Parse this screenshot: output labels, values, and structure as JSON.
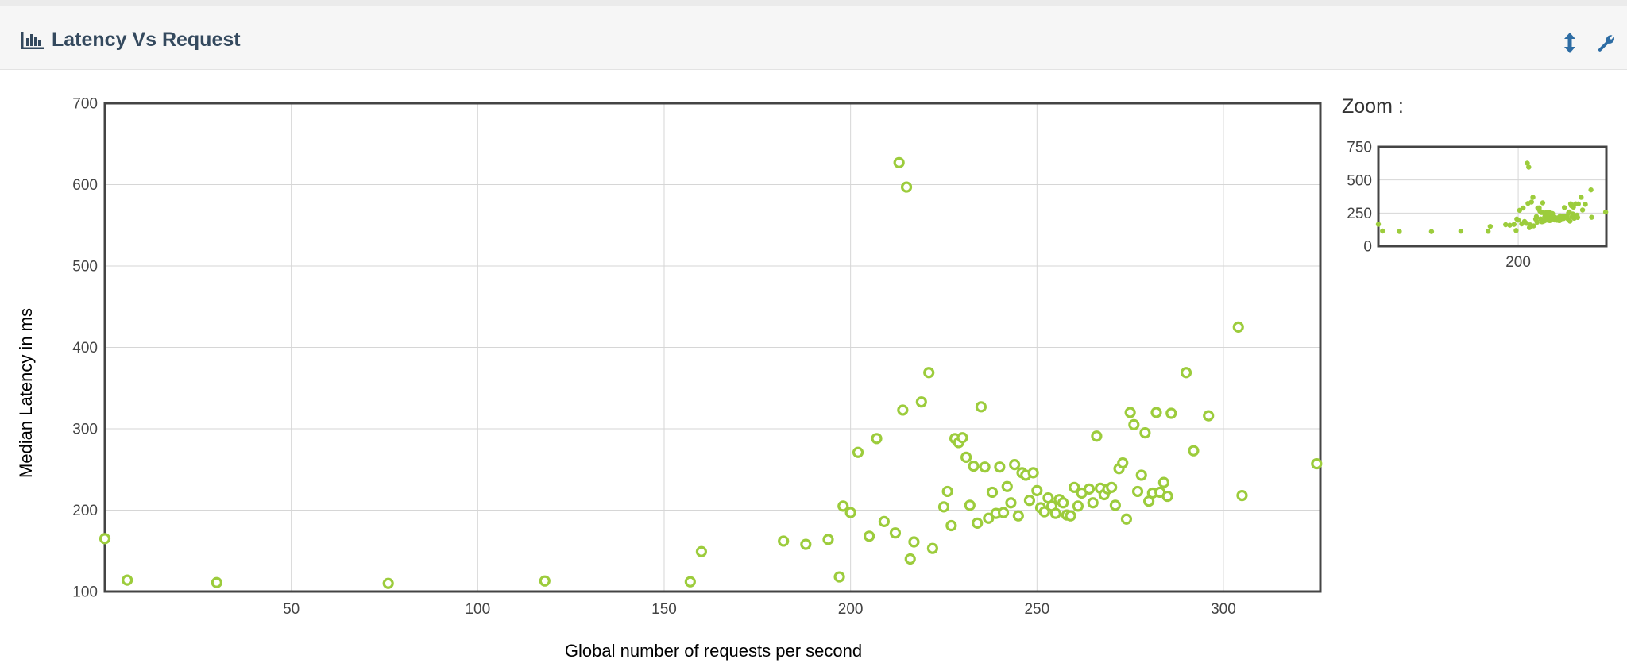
{
  "panel": {
    "title": "Latency Vs Request",
    "icons": {
      "chart": "bar-chart-icon",
      "resize": "vertical-resize-icon",
      "settings": "wrench-icon"
    }
  },
  "colors": {
    "point": "#9ccc3c",
    "accent": "#2e6da4",
    "title": "#34495e"
  },
  "zoom": {
    "label": "Zoom :"
  },
  "chart_data": [
    {
      "type": "scatter",
      "title": "",
      "xlabel": "Global number of requests per second",
      "ylabel": "Median Latency in ms",
      "xlim": [
        0,
        326
      ],
      "ylim": [
        100,
        700
      ],
      "xticks": [
        50,
        100,
        150,
        200,
        250,
        300
      ],
      "yticks": [
        100,
        200,
        300,
        400,
        500,
        600,
        700
      ],
      "grid": true,
      "points": [
        [
          0,
          165
        ],
        [
          6,
          114
        ],
        [
          30,
          111
        ],
        [
          76,
          110
        ],
        [
          118,
          113
        ],
        [
          157,
          112
        ],
        [
          160,
          149
        ],
        [
          182,
          162
        ],
        [
          188,
          158
        ],
        [
          194,
          164
        ],
        [
          197,
          118
        ],
        [
          198,
          205
        ],
        [
          200,
          197
        ],
        [
          202,
          271
        ],
        [
          205,
          168
        ],
        [
          207,
          288
        ],
        [
          209,
          186
        ],
        [
          212,
          172
        ],
        [
          213,
          627
        ],
        [
          214,
          323
        ],
        [
          215,
          597
        ],
        [
          216,
          140
        ],
        [
          217,
          161
        ],
        [
          219,
          333
        ],
        [
          221,
          369
        ],
        [
          222,
          153
        ],
        [
          225,
          204
        ],
        [
          226,
          223
        ],
        [
          227,
          181
        ],
        [
          228,
          288
        ],
        [
          229,
          283
        ],
        [
          230,
          289
        ],
        [
          231,
          265
        ],
        [
          232,
          206
        ],
        [
          233,
          254
        ],
        [
          234,
          184
        ],
        [
          235,
          327
        ],
        [
          236,
          253
        ],
        [
          237,
          190
        ],
        [
          238,
          222
        ],
        [
          239,
          196
        ],
        [
          240,
          253
        ],
        [
          241,
          197
        ],
        [
          242,
          229
        ],
        [
          243,
          209
        ],
        [
          244,
          256
        ],
        [
          245,
          193
        ],
        [
          246,
          246
        ],
        [
          247,
          243
        ],
        [
          248,
          212
        ],
        [
          249,
          246
        ],
        [
          250,
          224
        ],
        [
          251,
          203
        ],
        [
          252,
          198
        ],
        [
          253,
          215
        ],
        [
          254,
          205
        ],
        [
          255,
          196
        ],
        [
          256,
          213
        ],
        [
          257,
          209
        ],
        [
          258,
          194
        ],
        [
          259,
          193
        ],
        [
          260,
          228
        ],
        [
          261,
          205
        ],
        [
          262,
          221
        ],
        [
          264,
          226
        ],
        [
          265,
          209
        ],
        [
          266,
          291
        ],
        [
          267,
          227
        ],
        [
          268,
          219
        ],
        [
          269,
          226
        ],
        [
          270,
          228
        ],
        [
          271,
          206
        ],
        [
          272,
          251
        ],
        [
          273,
          258
        ],
        [
          274,
          189
        ],
        [
          275,
          320
        ],
        [
          276,
          305
        ],
        [
          277,
          223
        ],
        [
          278,
          243
        ],
        [
          279,
          295
        ],
        [
          280,
          211
        ],
        [
          281,
          221
        ],
        [
          282,
          320
        ],
        [
          283,
          222
        ],
        [
          284,
          234
        ],
        [
          285,
          217
        ],
        [
          286,
          319
        ],
        [
          290,
          369
        ],
        [
          292,
          273
        ],
        [
          296,
          316
        ],
        [
          304,
          425
        ],
        [
          305,
          218
        ],
        [
          325,
          257
        ]
      ]
    },
    {
      "type": "scatter",
      "title": "",
      "xlabel": "",
      "ylabel": "",
      "xlim": [
        0,
        326
      ],
      "ylim": [
        0,
        750
      ],
      "xticks": [
        200
      ],
      "yticks": [
        0,
        250,
        500,
        750
      ],
      "grid": true,
      "points_source": "same as main chart"
    }
  ]
}
